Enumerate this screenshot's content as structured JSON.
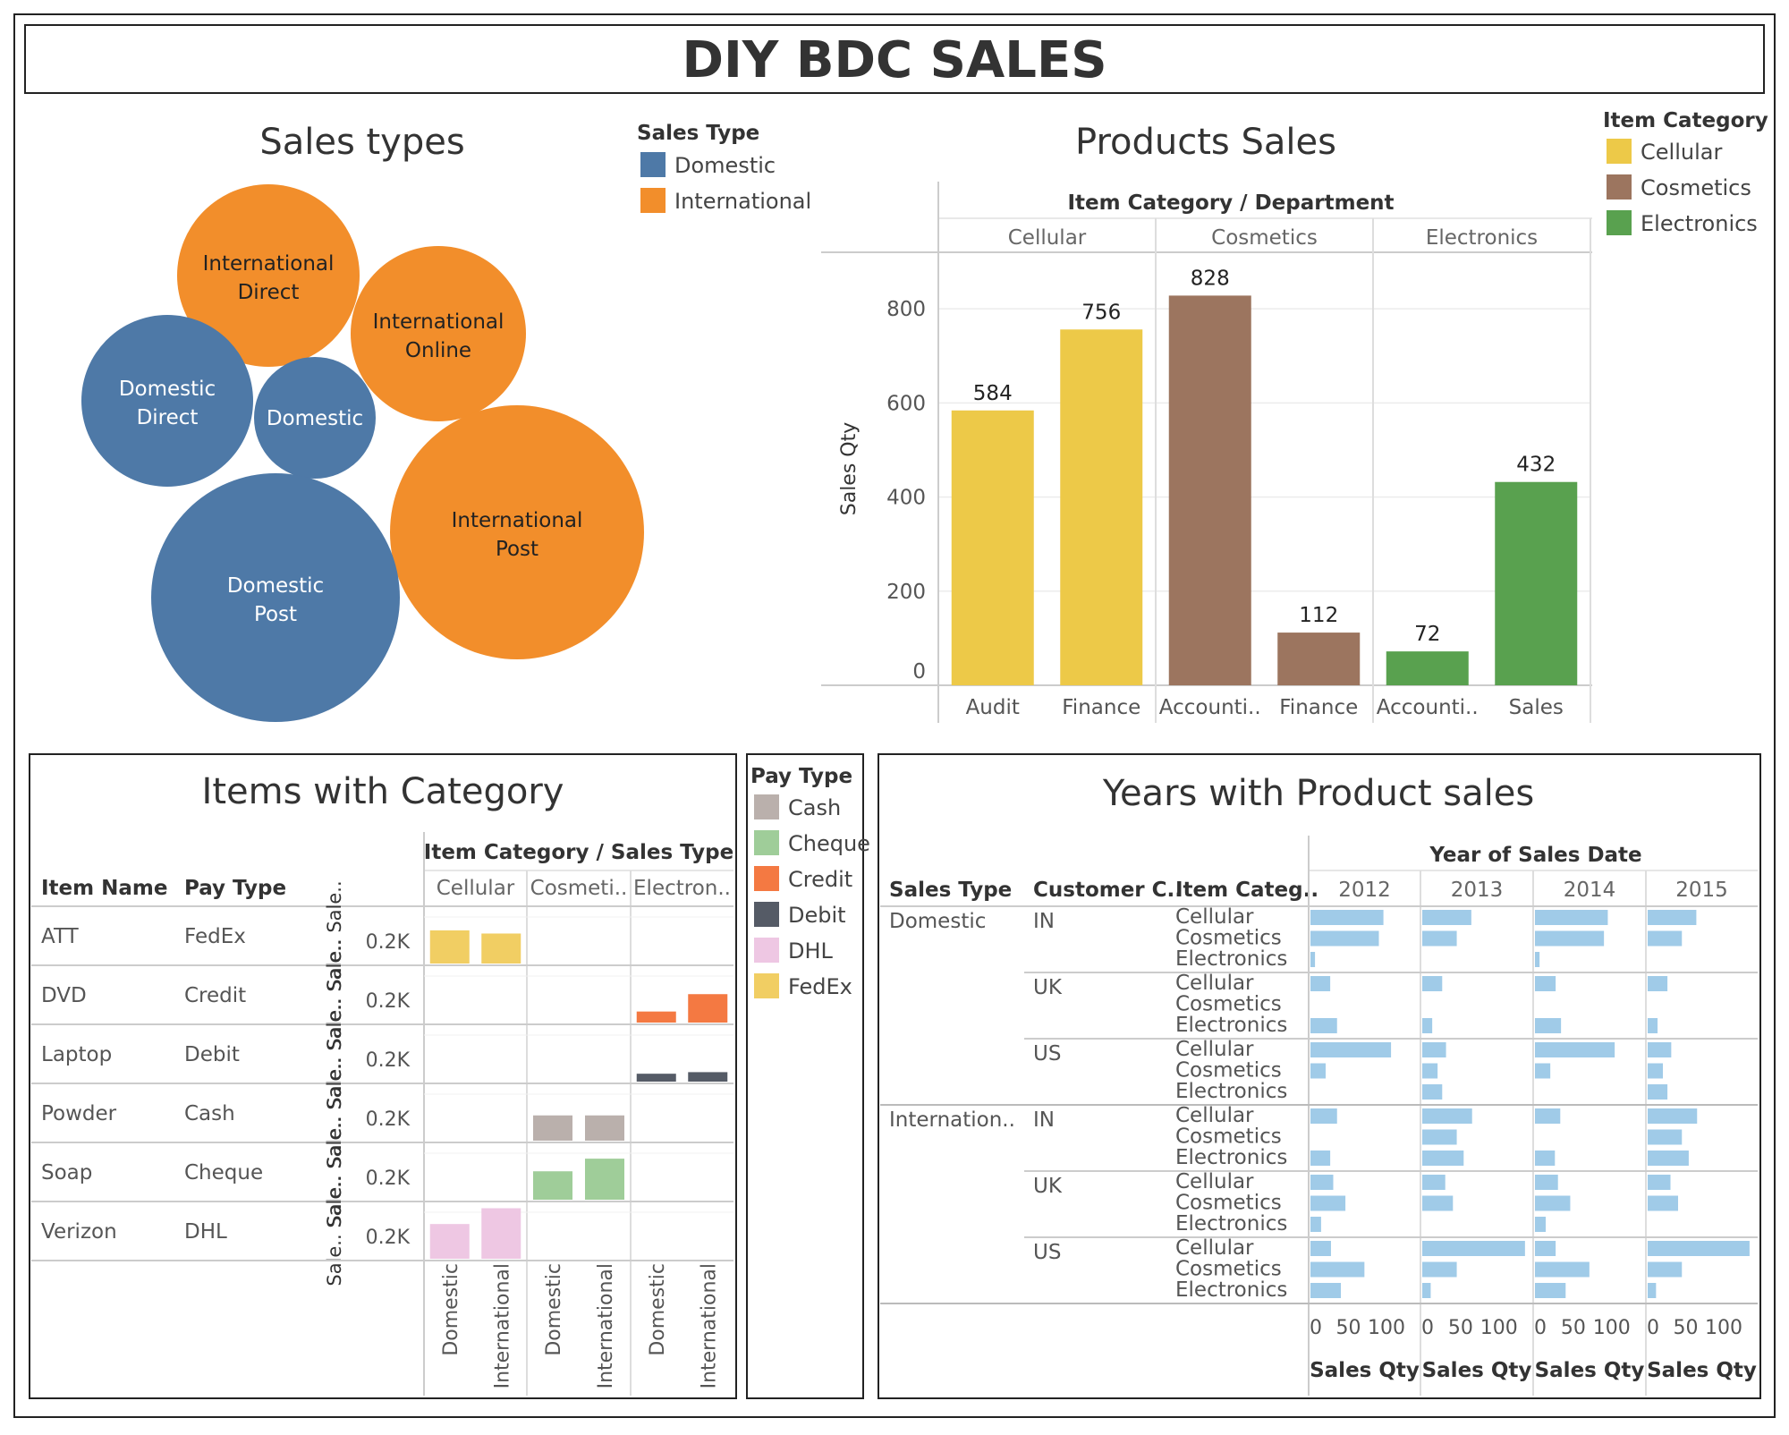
{
  "title": "DIY BDC SALES",
  "bubble": {
    "title": "Sales types",
    "legend_title": "Sales Type",
    "legend": [
      {
        "label": "Domestic",
        "color": "#4e79a7"
      },
      {
        "label": "International",
        "color": "#f28e2b"
      }
    ],
    "bubbles": [
      {
        "line1": "International",
        "line2": "Direct",
        "type": "International"
      },
      {
        "line1": "International",
        "line2": "Online",
        "type": "International"
      },
      {
        "line1": "Domestic",
        "line2": "Direct",
        "type": "Domestic"
      },
      {
        "line1": "Domestic",
        "line2": "",
        "type": "Domestic"
      },
      {
        "line1": "International",
        "line2": "Post",
        "type": "International"
      },
      {
        "line1": "Domestic",
        "line2": "Post",
        "type": "Domestic"
      }
    ]
  },
  "products": {
    "title": "Products Sales",
    "header": "Item Category / Department",
    "legend_title": "Item Category",
    "legend": [
      {
        "label": "Cellular",
        "color": "#edc948"
      },
      {
        "label": "Cosmetics",
        "color": "#9c755f"
      },
      {
        "label": "Electronics",
        "color": "#59a14f"
      }
    ],
    "ylabel": "Sales Qty",
    "yticks": [
      "800",
      "600",
      "400",
      "200",
      "0"
    ]
  },
  "chart_data": [
    {
      "type": "bar",
      "title": "Products Sales",
      "ylabel": "Sales Qty",
      "ylim": [
        0,
        920
      ],
      "groups": [
        {
          "category": "Cellular",
          "color": "#edc948",
          "bars": [
            {
              "dept": "Audit",
              "value": 584
            },
            {
              "dept": "Finance",
              "value": 756
            }
          ]
        },
        {
          "category": "Cosmetics",
          "color": "#9c755f",
          "bars": [
            {
              "dept": "Accounti..",
              "value": 828
            },
            {
              "dept": "Finance",
              "value": 112
            }
          ]
        },
        {
          "category": "Electronics",
          "color": "#59a14f",
          "bars": [
            {
              "dept": "Accounti..",
              "value": 72
            },
            {
              "dept": "Sales",
              "value": 432
            }
          ]
        }
      ]
    },
    {
      "type": "bar",
      "title": "Items with Category",
      "header": "Item Category / Sales Type",
      "columns": [
        "Cellular",
        "Cosmeti..",
        "Electron.."
      ],
      "sales_types": [
        "Domestic",
        "International"
      ],
      "rows": [
        {
          "item": "ATT",
          "pay": "FedEx",
          "axis": "Sale.. Sale..",
          "tick": "0.2K",
          "color": "#f1ce63",
          "values": [
            [
              0.21,
              0.19
            ],
            null,
            null
          ]
        },
        {
          "item": "DVD",
          "pay": "Credit",
          "axis": "Sale.. Sale..",
          "tick": "0.2K",
          "color": "#f47942",
          "values": [
            null,
            null,
            [
              0.07,
              0.18
            ]
          ]
        },
        {
          "item": "Laptop",
          "pay": "Debit",
          "axis": "Sale.. Sale..",
          "tick": "0.2K",
          "color": "#555b66",
          "values": [
            null,
            null,
            [
              0.05,
              0.06
            ]
          ]
        },
        {
          "item": "Powder",
          "pay": "Cash",
          "axis": "Sale.. Sale..",
          "tick": "0.2K",
          "color": "#bab0ac",
          "values": [
            null,
            [
              0.16,
              0.16
            ],
            null
          ]
        },
        {
          "item": "Soap",
          "pay": "Cheque",
          "axis": "Sale.. Sale..",
          "tick": "0.2K",
          "color": "#9fcd99",
          "values": [
            null,
            [
              0.18,
              0.26
            ],
            null
          ]
        },
        {
          "item": "Verizon",
          "pay": "DHL",
          "axis": "Sale.. Sale..",
          "tick": "0.2K",
          "color": "#eec7e3",
          "values": [
            [
              0.22,
              0.32
            ],
            null,
            null
          ]
        }
      ]
    },
    {
      "type": "bar",
      "title": "Years with Product sales",
      "header": "Year of Sales Date",
      "years": [
        "2012",
        "2013",
        "2014",
        "2015"
      ],
      "xlim": [
        0,
        140
      ],
      "xticks": [
        "0",
        "50",
        "100"
      ],
      "xlabel": "Sales Qty",
      "groups": [
        {
          "sales_type": "Domestic",
          "country": "IN",
          "values": [
            [
              96,
              90,
              6
            ],
            [
              64,
              45,
              0
            ],
            [
              95,
              90,
              6
            ],
            [
              64,
              45,
              0
            ]
          ]
        },
        {
          "sales_type": "",
          "country": "UK",
          "values": [
            [
              26,
              0,
              35
            ],
            [
              26,
              0,
              13
            ],
            [
              27,
              0,
              34
            ],
            [
              26,
              0,
              13
            ]
          ]
        },
        {
          "sales_type": "",
          "country": "US",
          "values": [
            [
              106,
              20,
              0
            ],
            [
              31,
              20,
              26
            ],
            [
              104,
              20,
              0
            ],
            [
              31,
              20,
              26
            ]
          ]
        },
        {
          "sales_type": "Internation..",
          "country": "IN",
          "values": [
            [
              35,
              0,
              26
            ],
            [
              65,
              45,
              54
            ],
            [
              33,
              0,
              26
            ],
            [
              65,
              45,
              54
            ]
          ]
        },
        {
          "sales_type": "",
          "country": "UK",
          "values": [
            [
              30,
              46,
              14
            ],
            [
              30,
              40,
              0
            ],
            [
              30,
              46,
              14
            ],
            [
              30,
              40,
              0
            ]
          ]
        },
        {
          "sales_type": "",
          "country": "US",
          "values": [
            [
              27,
              71,
              40
            ],
            [
              134,
              45,
              11
            ],
            [
              27,
              71,
              40
            ],
            [
              134,
              45,
              11
            ]
          ]
        }
      ]
    }
  ],
  "items": {
    "title": "Items with Category",
    "col_item": "Item Name",
    "col_pay": "Pay Type"
  },
  "paytype": {
    "title": "Pay Type",
    "items": [
      {
        "label": "Cash",
        "color": "#bab0ac"
      },
      {
        "label": "Cheque",
        "color": "#9fcd99"
      },
      {
        "label": "Credit",
        "color": "#f47942"
      },
      {
        "label": "Debit",
        "color": "#555b66"
      },
      {
        "label": "DHL",
        "color": "#eec7e3"
      },
      {
        "label": "FedEx",
        "color": "#f1ce63"
      }
    ]
  },
  "years": {
    "col_type": "Sales Type",
    "col_cust": "Customer C..",
    "col_cat": "Item Categ..",
    "categories": [
      "Cellular",
      "Cosmetics",
      "Electronics"
    ],
    "bar_color": "#a0cbe8"
  }
}
